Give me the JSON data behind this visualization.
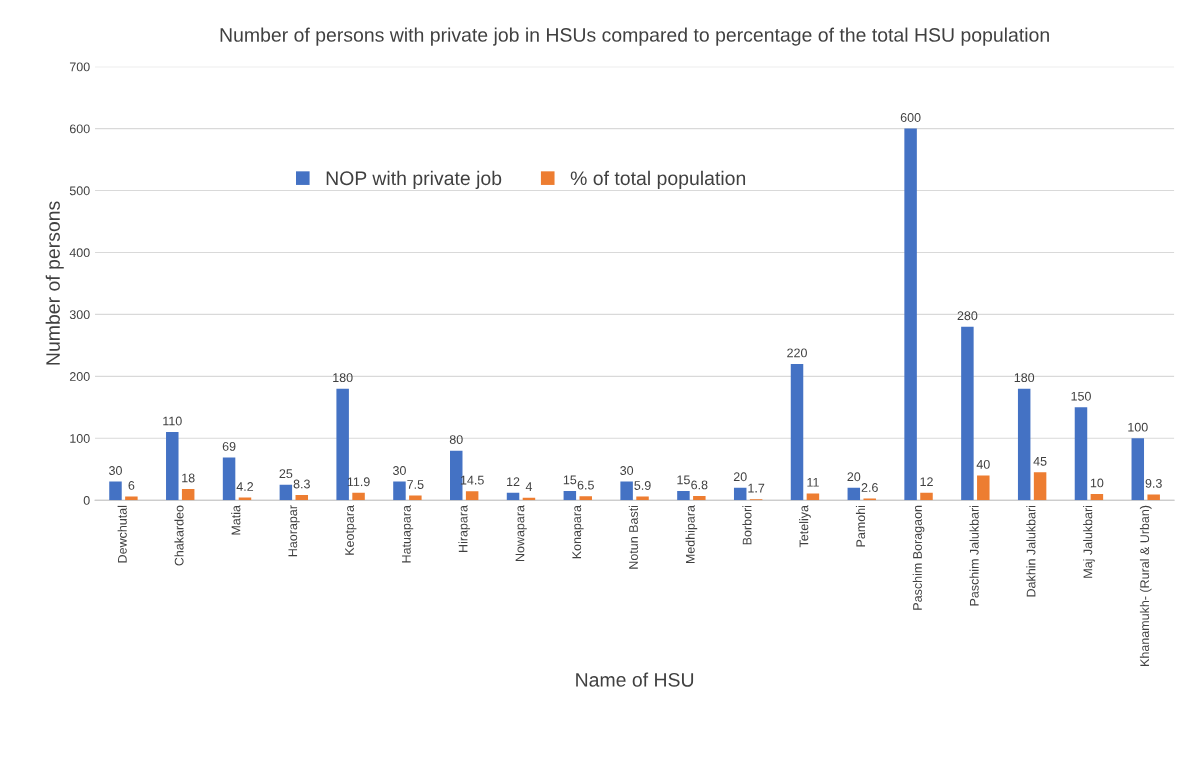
{
  "chart_data": {
    "type": "bar",
    "title": "Number of persons with private job in HSUs compared to percentage of the total HSU population",
    "xlabel": "Name of HSU",
    "ylabel": "Number of persons",
    "categories": [
      "Dewchutal",
      "Chakardeo",
      "Matia",
      "Haorapar",
      "Keotpara",
      "Hatuapara",
      "Hirapara",
      "Nowapara",
      "Konapara",
      "Notun Basti",
      "Medhipara",
      "Borbori",
      "Teteliya",
      "Pamohi",
      "Paschim Boragaon",
      "Paschim Jalukbari",
      "Dakhin Jalukbari",
      "Maj Jalukbari",
      "Khanamukh- (Rural & Urban)"
    ],
    "series": [
      {
        "name": "NOP with private job",
        "color": "#4472c4",
        "values": [
          30,
          110,
          69,
          25,
          180,
          30,
          80,
          12,
          15,
          30,
          15,
          20,
          220,
          20,
          600,
          280,
          180,
          150,
          100
        ]
      },
      {
        "name": "% of total population",
        "color": "#ed7d31",
        "values": [
          6,
          18,
          4.2,
          8.3,
          11.9,
          7.5,
          14.5,
          4,
          6.5,
          5.9,
          6.8,
          1.7,
          11,
          2.6,
          12,
          40,
          45,
          10,
          9.3
        ]
      }
    ],
    "ylim": [
      0,
      700
    ],
    "yticks": [
      0,
      100,
      200,
      300,
      400,
      500,
      600,
      700
    ],
    "grid": "y",
    "legend": "top left",
    "data_labels": true
  }
}
